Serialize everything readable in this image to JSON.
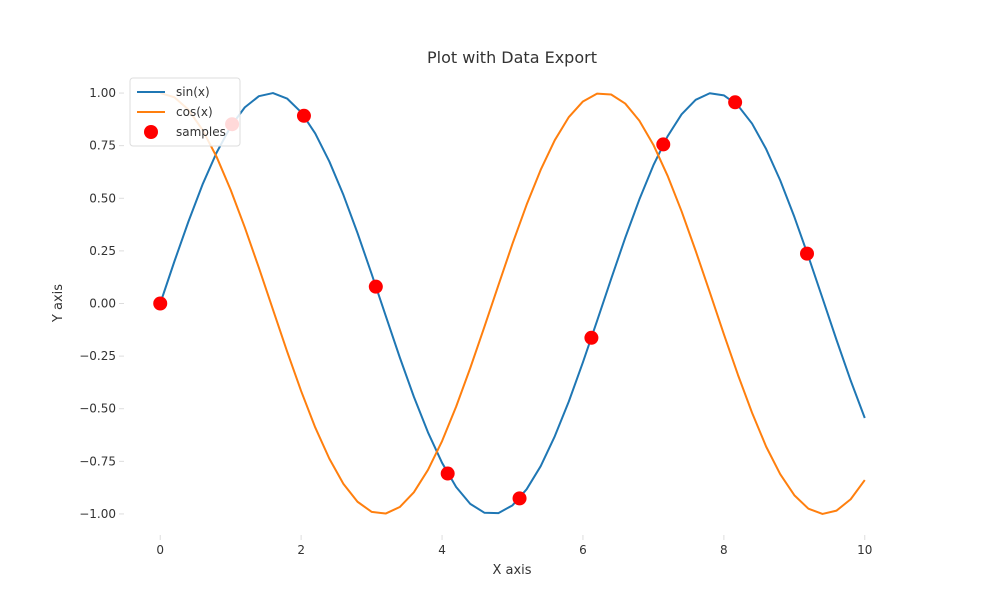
{
  "chart_data": {
    "type": "line",
    "title": "Plot with Data Export",
    "xlabel": "X axis",
    "ylabel": "Y axis",
    "xlim": [
      -0.5,
      10.5
    ],
    "ylim": [
      -1.1,
      1.1
    ],
    "x_ticks": [
      0,
      2,
      4,
      6,
      8,
      10
    ],
    "x_tick_labels": [
      "0",
      "2",
      "4",
      "6",
      "8",
      "10"
    ],
    "y_ticks": [
      1.0,
      0.75,
      0.5,
      0.25,
      0.0,
      -0.25,
      -0.5,
      -0.75,
      -1.0
    ],
    "y_tick_labels": [
      "1.00",
      "0.75",
      "0.50",
      "0.25",
      "0.00",
      "−0.25",
      "−0.50",
      "−0.75",
      "−1.00"
    ],
    "grid": false,
    "legend_position": "top-left",
    "series": [
      {
        "name": "sin(x)",
        "type": "line",
        "color": "#1f77b4",
        "x": [
          0,
          0.2,
          0.4,
          0.6,
          0.8,
          1.0,
          1.2,
          1.4,
          1.6,
          1.8,
          2.0,
          2.2,
          2.4,
          2.6,
          2.8,
          3.0,
          3.2,
          3.4,
          3.6,
          3.8,
          4.0,
          4.2,
          4.4,
          4.6,
          4.8,
          5.0,
          5.2,
          5.4,
          5.6,
          5.8,
          6.0,
          6.2,
          6.4,
          6.6,
          6.8,
          7.0,
          7.2,
          7.4,
          7.6,
          7.8,
          8.0,
          8.2,
          8.4,
          8.6,
          8.8,
          9.0,
          9.2,
          9.4,
          9.6,
          9.8,
          10.0
        ],
        "y": [
          0.0,
          0.199,
          0.389,
          0.565,
          0.717,
          0.841,
          0.932,
          0.985,
          1.0,
          0.974,
          0.909,
          0.808,
          0.675,
          0.516,
          0.335,
          0.141,
          -0.058,
          -0.256,
          -0.443,
          -0.612,
          -0.757,
          -0.872,
          -0.952,
          -0.994,
          -0.996,
          -0.959,
          -0.883,
          -0.773,
          -0.631,
          -0.465,
          -0.279,
          -0.083,
          0.117,
          0.312,
          0.494,
          0.657,
          0.794,
          0.899,
          0.968,
          0.999,
          0.989,
          0.941,
          0.855,
          0.734,
          0.585,
          0.412,
          0.223,
          0.025,
          -0.174,
          -0.366,
          -0.544
        ]
      },
      {
        "name": "cos(x)",
        "type": "line",
        "color": "#ff7f0e",
        "x": [
          0,
          0.2,
          0.4,
          0.6,
          0.8,
          1.0,
          1.2,
          1.4,
          1.6,
          1.8,
          2.0,
          2.2,
          2.4,
          2.6,
          2.8,
          3.0,
          3.2,
          3.4,
          3.6,
          3.8,
          4.0,
          4.2,
          4.4,
          4.6,
          4.8,
          5.0,
          5.2,
          5.4,
          5.6,
          5.8,
          6.0,
          6.2,
          6.4,
          6.6,
          6.8,
          7.0,
          7.2,
          7.4,
          7.6,
          7.8,
          8.0,
          8.2,
          8.4,
          8.6,
          8.8,
          9.0,
          9.2,
          9.4,
          9.6,
          9.8,
          10.0
        ],
        "y": [
          1.0,
          0.98,
          0.921,
          0.825,
          0.697,
          0.54,
          0.362,
          0.17,
          -0.029,
          -0.227,
          -0.416,
          -0.589,
          -0.737,
          -0.857,
          -0.942,
          -0.99,
          -0.998,
          -0.967,
          -0.897,
          -0.791,
          -0.654,
          -0.49,
          -0.307,
          -0.112,
          0.087,
          0.284,
          0.469,
          0.635,
          0.776,
          0.886,
          0.96,
          0.997,
          0.993,
          0.95,
          0.869,
          0.754,
          0.608,
          0.438,
          0.25,
          0.054,
          -0.146,
          -0.339,
          -0.519,
          -0.68,
          -0.811,
          -0.911,
          -0.975,
          -1.0,
          -0.984,
          -0.93,
          -0.839
        ]
      },
      {
        "name": "samples",
        "type": "scatter",
        "color": "#ff0000",
        "x": [
          0.0,
          1.02,
          2.04,
          3.06,
          4.08,
          5.1,
          6.12,
          7.14,
          8.16,
          9.18
        ],
        "y": [
          0.0,
          0.852,
          0.892,
          0.08,
          -0.808,
          -0.926,
          -0.163,
          0.756,
          0.956,
          0.237
        ]
      }
    ]
  }
}
